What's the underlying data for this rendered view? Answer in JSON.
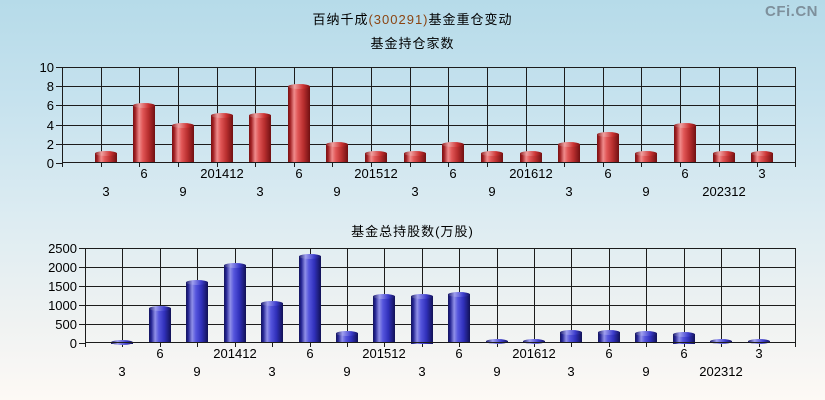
{
  "header": {
    "title_prefix": "百纳千成",
    "title_code": "(300291)",
    "title_suffix": "基金重仓变动",
    "logo": "CFi.CN"
  },
  "colors": {
    "bar_red": "#cc2a2a",
    "bar_blue": "#3535c8",
    "code_text": "#8b4513",
    "logo_text": "#7e909c",
    "grid": "#1c1c1c",
    "background_top": "#b6dbe9",
    "background_bottom": "#fdf9f5"
  },
  "chart_data": [
    {
      "type": "bar",
      "title": "基金持仓家数",
      "categories": [
        "3",
        "6",
        "9",
        "201412",
        "3",
        "6",
        "9",
        "201512",
        "3",
        "6",
        "9",
        "201612",
        "3",
        "6",
        "9",
        "6",
        "202312",
        "3"
      ],
      "values": [
        1,
        6,
        4,
        5,
        5,
        8,
        2,
        1,
        1,
        2,
        1,
        1,
        2,
        3,
        1,
        4,
        1,
        1
      ],
      "xlabel": "",
      "ylabel": "",
      "ylim": [
        0,
        10
      ],
      "yticks": [
        0,
        2,
        4,
        6,
        8,
        10
      ],
      "grid": true,
      "legend": "none",
      "bar_color": "red",
      "x_label_rows": "alternating"
    },
    {
      "type": "bar",
      "title": "基金总持股数(万股)",
      "categories": [
        "3",
        "6",
        "9",
        "201412",
        "3",
        "6",
        "9",
        "201512",
        "3",
        "6",
        "9",
        "201612",
        "3",
        "6",
        "9",
        "6",
        "202312",
        "3"
      ],
      "values": [
        30,
        930,
        1610,
        2040,
        1060,
        2280,
        270,
        1240,
        1250,
        1300,
        45,
        55,
        280,
        280,
        255,
        250,
        50,
        45
      ],
      "xlabel": "",
      "ylabel": "",
      "ylim": [
        0,
        2500
      ],
      "yticks": [
        0,
        500,
        1000,
        1500,
        2000,
        2500
      ],
      "grid": true,
      "legend": "none",
      "bar_color": "blue",
      "x_label_rows": "alternating"
    }
  ]
}
